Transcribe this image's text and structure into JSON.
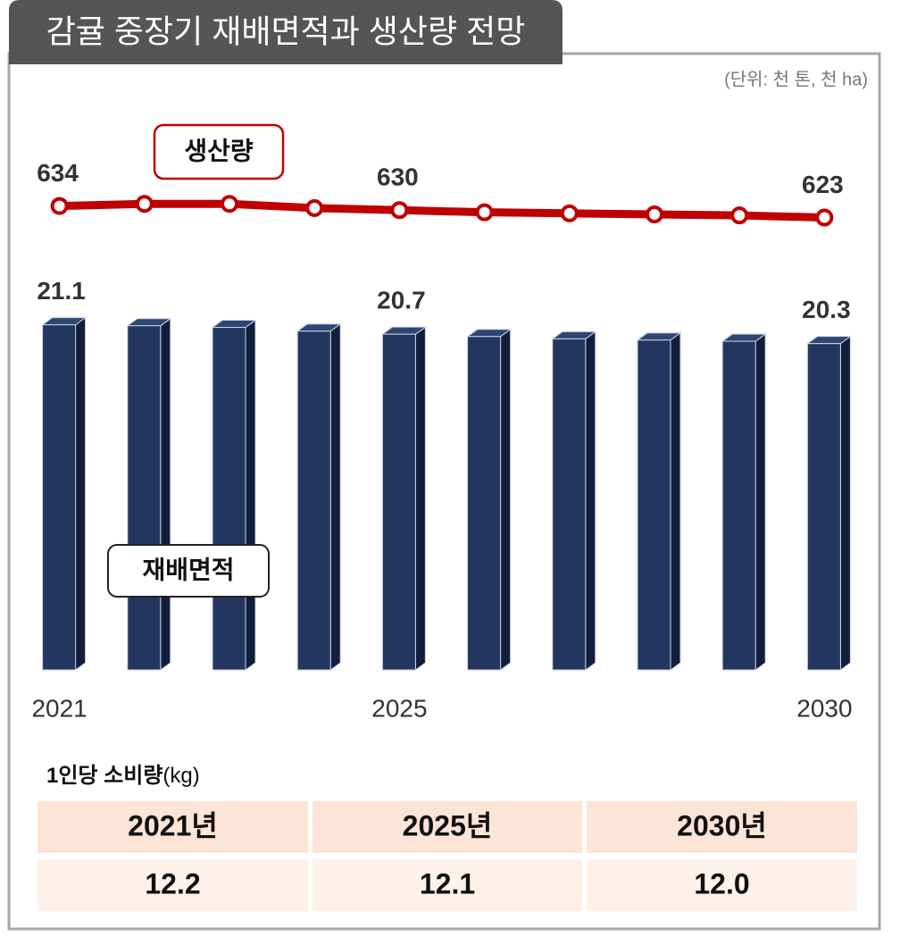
{
  "chart_data": {
    "type": "bar-line",
    "title": "감귤 중장기 재배면적과 생산량 전망",
    "subtitle": "(단위: 천 톤, 천 ha)",
    "categories": [
      "2021",
      null,
      null,
      null,
      "2025",
      null,
      null,
      null,
      null,
      "2030"
    ],
    "ylim": [
      6.4,
      22
    ],
    "y2lim": [
      592,
      660
    ],
    "series": [
      {
        "name": "재배면적",
        "type": "bar",
        "color": "#22365f",
        "values": [
          21.1,
          21.06,
          20.99,
          20.83,
          20.7,
          20.6,
          20.5,
          20.45,
          20.4,
          20.3
        ],
        "value_labels": [
          "21.1",
          null,
          null,
          null,
          "20.7",
          null,
          null,
          null,
          null,
          "20.3"
        ]
      },
      {
        "name": "생산량",
        "type": "line",
        "axis": "y2",
        "color": "#c00000",
        "values": [
          634,
          636,
          636,
          632,
          630,
          628,
          627,
          626,
          625,
          623
        ],
        "value_labels": [
          "634",
          null,
          null,
          null,
          "630",
          null,
          null,
          null,
          null,
          "623"
        ]
      }
    ]
  },
  "table": {
    "title": "1인당 소비량",
    "unit": "(kg)",
    "header": [
      "2021년",
      "2025년",
      "2030년"
    ],
    "rows": [
      [
        "12.2",
        "12.1",
        "12.0"
      ]
    ]
  }
}
